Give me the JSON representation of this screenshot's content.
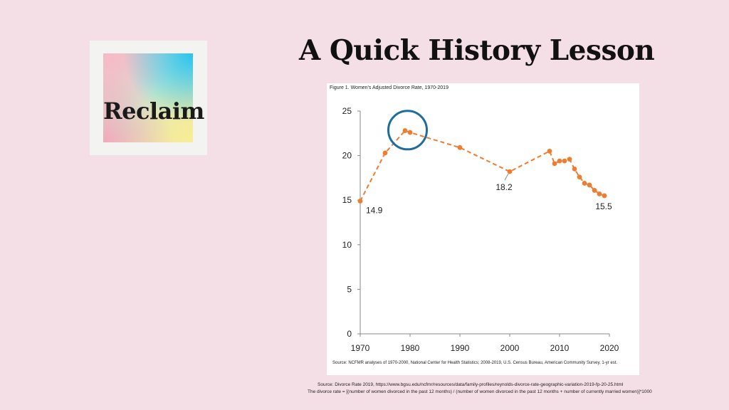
{
  "logo": {
    "text": "Reclaim"
  },
  "slide": {
    "title": "A Quick History Lesson"
  },
  "figure": {
    "title": "Figure 1. Women's Adjusted Divorce Rate, 1970-2019",
    "source": "Source: NCFMR analyses of 1970-2000, National Center for Health Statistics; 2008-2019, U.S. Census Bureau, American Community Survey, 1-yr est."
  },
  "captions": {
    "line1": "Source: Divorce Rate 2019, https://www.bgsu.edu/ncfmr/resources/data/family-profiles/reynolds-divorce-rate-geographic-variation-2019-fp-20-25.html",
    "line2": "The divorce rate = [(number of women divorced in the past 12 months) / (number of women divorced in the past 12 months + number of currently married women)]*1000"
  },
  "chart_data": {
    "type": "line",
    "title": "Figure 1. Women's Adjusted Divorce Rate, 1970-2019",
    "xlabel": "",
    "ylabel": "",
    "xlim": [
      1970,
      2020
    ],
    "ylim": [
      0,
      25
    ],
    "x_ticks": [
      1970,
      1980,
      1990,
      2000,
      2010,
      2020
    ],
    "y_ticks": [
      0,
      5,
      10,
      15,
      20,
      25
    ],
    "grid": false,
    "line_style": "dashed",
    "color": "#ed7d31",
    "highlight_color": "#1f6d9c",
    "series": [
      {
        "x": [
          1970,
          1975,
          1979,
          1980,
          1990,
          2000,
          2008,
          2009,
          2010,
          2011,
          2012,
          2013,
          2014,
          2015,
          2016,
          2017,
          2018,
          2019
        ],
        "y": [
          14.9,
          20.3,
          22.8,
          22.6,
          20.9,
          18.2,
          20.5,
          19.1,
          19.4,
          19.4,
          19.6,
          18.5,
          17.6,
          16.9,
          16.7,
          16.1,
          15.7,
          15.5
        ]
      }
    ],
    "annotations": [
      {
        "text": "14.9",
        "x": 1970,
        "y": 14.9
      },
      {
        "text": "18.2",
        "x": 2000,
        "y": 18.2
      },
      {
        "text": "15.5",
        "x": 2019,
        "y": 15.5
      }
    ],
    "highlight": {
      "x": 1979.5,
      "y": 22.7
    }
  }
}
